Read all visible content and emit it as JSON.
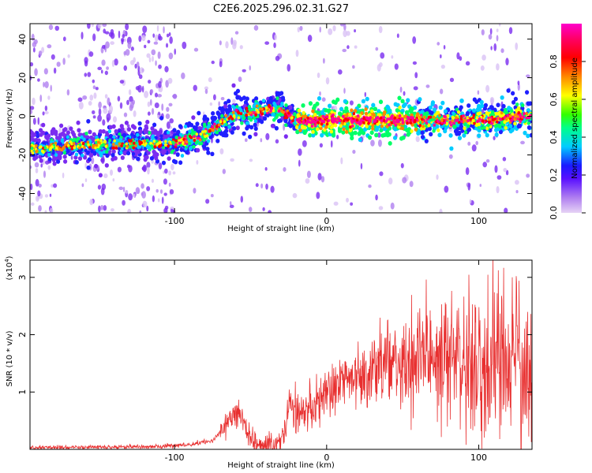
{
  "title": "C2E6.2025.296.02.31.G27",
  "chart_data": [
    {
      "type": "heatmap",
      "xlabel": "Height of straight line (km)",
      "ylabel": "Frequency (Hz)",
      "xlim": [
        -195,
        135
      ],
      "ylim": [
        -50,
        48
      ],
      "xticks": [
        -100,
        0,
        100
      ],
      "xtick_labels": [
        "-100",
        "0",
        "100"
      ],
      "yticks": [
        -40,
        -20,
        0,
        20,
        40
      ],
      "ytick_labels": [
        "-40",
        "-20",
        "0",
        "20",
        "40"
      ],
      "colorbar": {
        "label": "Normalized spectral amplitude",
        "range": [
          0,
          1
        ],
        "ticks": [
          0.0,
          0.2,
          0.4,
          0.6,
          0.8
        ],
        "tick_labels": [
          "0.0",
          "0.2",
          "0.4",
          "0.6",
          "0.8"
        ],
        "colors": [
          "#e6d3f5",
          "#7b2cf0",
          "#1a1aff",
          "#00ccff",
          "#00ff66",
          "#66ff00",
          "#ffff00",
          "#ff8800",
          "#ff0000",
          "#ff0066",
          "#ff00cc"
        ]
      },
      "ridge": [
        {
          "x": -195,
          "y": -17
        },
        {
          "x": -160,
          "y": -15
        },
        {
          "x": -130,
          "y": -14
        },
        {
          "x": -100,
          "y": -14
        },
        {
          "x": -85,
          "y": -11
        },
        {
          "x": -70,
          "y": -4
        },
        {
          "x": -60,
          "y": 2
        },
        {
          "x": -50,
          "y": 1
        },
        {
          "x": -40,
          "y": 4
        },
        {
          "x": -30,
          "y": 3
        },
        {
          "x": -20,
          "y": -2
        },
        {
          "x": -15,
          "y": -3
        },
        {
          "x": 0,
          "y": -2
        },
        {
          "x": 50,
          "y": -2
        },
        {
          "x": 100,
          "y": -2
        },
        {
          "x": 135,
          "y": 0
        }
      ]
    },
    {
      "type": "line",
      "xlabel": "Height of straight line (km)",
      "ylabel": "SNR (10 * v/v)",
      "scale_note": "(x10",
      "scale_exp": "4",
      "scale_close": ")",
      "xlim": [
        -195,
        135
      ],
      "ylim": [
        0,
        3.3
      ],
      "xticks": [
        -100,
        0,
        100
      ],
      "xtick_labels": [
        "-100",
        "0",
        "100"
      ],
      "yticks": [
        1,
        2,
        3
      ],
      "ytick_labels": [
        "1",
        "2",
        "3"
      ],
      "line_color": "#e83030",
      "envelope": [
        {
          "x": -195,
          "y": 0.03
        },
        {
          "x": -150,
          "y": 0.04
        },
        {
          "x": -110,
          "y": 0.05
        },
        {
          "x": -90,
          "y": 0.08
        },
        {
          "x": -75,
          "y": 0.15
        },
        {
          "x": -65,
          "y": 0.45
        },
        {
          "x": -58,
          "y": 0.75
        },
        {
          "x": -52,
          "y": 0.3
        },
        {
          "x": -45,
          "y": 0.08
        },
        {
          "x": -35,
          "y": 0.06
        },
        {
          "x": -28,
          "y": 0.2
        },
        {
          "x": -24,
          "y": 0.9
        },
        {
          "x": -20,
          "y": 0.6
        },
        {
          "x": -10,
          "y": 0.8
        },
        {
          "x": 0,
          "y": 1.0
        },
        {
          "x": 20,
          "y": 1.3
        },
        {
          "x": 40,
          "y": 1.5
        },
        {
          "x": 60,
          "y": 1.55
        },
        {
          "x": 80,
          "y": 1.6
        },
        {
          "x": 100,
          "y": 1.6
        },
        {
          "x": 120,
          "y": 1.5
        },
        {
          "x": 135,
          "y": 1.4
        }
      ]
    }
  ]
}
